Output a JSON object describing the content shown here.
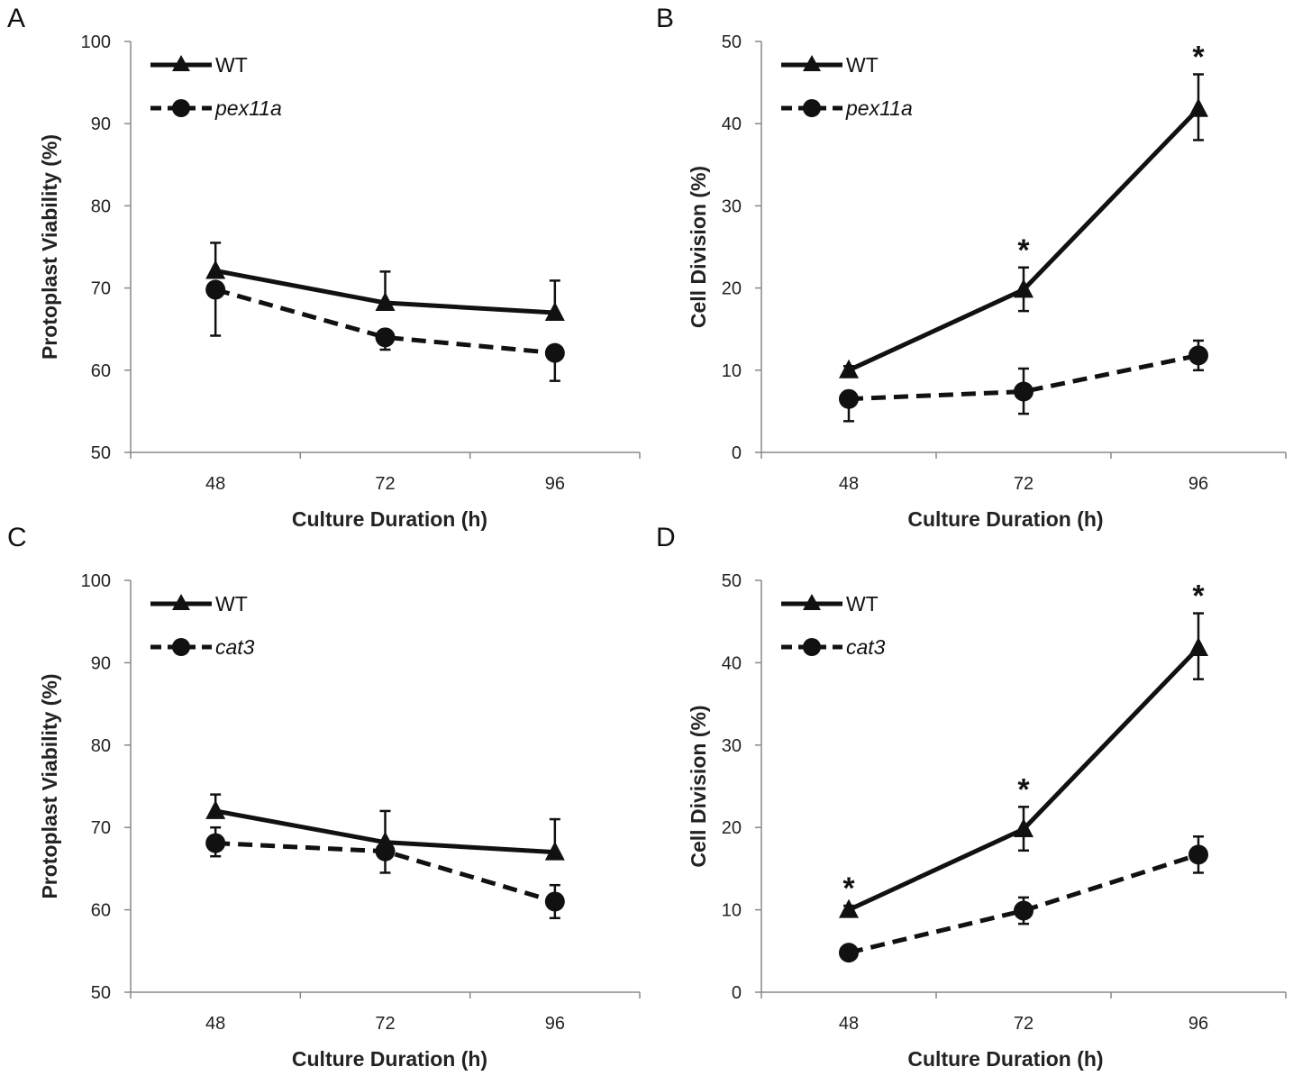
{
  "chart_data": [
    {
      "panel": "A",
      "type": "line",
      "xlabel": "Culture Duration (h)",
      "ylabel": "Protoplast Viability (%)",
      "ylim": [
        50,
        100
      ],
      "yticks": [
        50,
        60,
        70,
        80,
        90,
        100
      ],
      "categories": [
        "48",
        "72",
        "96"
      ],
      "series": [
        {
          "name": "WT",
          "italic": false,
          "style": "solid-triangle",
          "values": [
            72.1,
            68.2,
            67.0
          ],
          "err_up": [
            3.4,
            3.8,
            3.9
          ],
          "err_down": [
            0,
            0,
            0
          ]
        },
        {
          "name": "pex11a",
          "italic": true,
          "style": "dashed-circle",
          "values": [
            69.8,
            64.0,
            62.1
          ],
          "err_up": [
            0,
            0,
            0
          ],
          "err_down": [
            5.6,
            1.5,
            3.4
          ]
        }
      ],
      "significance": []
    },
    {
      "panel": "B",
      "type": "line",
      "xlabel": "Culture Duration (h)",
      "ylabel": "Cell Division (%)",
      "ylim": [
        0,
        50
      ],
      "yticks": [
        0,
        10,
        20,
        30,
        40,
        50
      ],
      "categories": [
        "48",
        "72",
        "96"
      ],
      "series": [
        {
          "name": "WT",
          "italic": false,
          "style": "solid-triangle",
          "values": [
            10.0,
            19.8,
            41.8
          ],
          "err_up": [
            0.5,
            2.7,
            4.2
          ],
          "err_down": [
            0,
            2.6,
            3.8
          ]
        },
        {
          "name": "pex11a",
          "italic": true,
          "style": "dashed-circle",
          "values": [
            6.5,
            7.4,
            11.8
          ],
          "err_up": [
            0,
            2.8,
            1.8
          ],
          "err_down": [
            2.7,
            2.7,
            1.8
          ]
        }
      ],
      "significance": [
        "",
        "*",
        "*"
      ]
    },
    {
      "panel": "C",
      "type": "line",
      "xlabel": "Culture Duration (h)",
      "ylabel": "Protoplast Viability (%)",
      "ylim": [
        50,
        100
      ],
      "yticks": [
        50,
        60,
        70,
        80,
        90,
        100
      ],
      "categories": [
        "48",
        "72",
        "96"
      ],
      "series": [
        {
          "name": "WT",
          "italic": false,
          "style": "solid-triangle",
          "values": [
            72.0,
            68.2,
            67.0
          ],
          "err_up": [
            2.0,
            3.8,
            4.0
          ],
          "err_down": [
            0,
            0,
            0
          ]
        },
        {
          "name": "cat3",
          "italic": true,
          "style": "dashed-circle",
          "values": [
            68.1,
            67.1,
            61.0
          ],
          "err_up": [
            1.9,
            0,
            2.0
          ],
          "err_down": [
            1.6,
            2.6,
            2.0
          ]
        }
      ],
      "significance": []
    },
    {
      "panel": "D",
      "type": "line",
      "xlabel": "Culture Duration (h)",
      "ylabel": "Cell Division (%)",
      "ylim": [
        0,
        50
      ],
      "yticks": [
        0,
        10,
        20,
        30,
        40,
        50
      ],
      "categories": [
        "48",
        "72",
        "96"
      ],
      "series": [
        {
          "name": "WT",
          "italic": false,
          "style": "solid-triangle",
          "values": [
            10.0,
            19.8,
            41.8
          ],
          "err_up": [
            0.5,
            2.7,
            4.2
          ],
          "err_down": [
            0,
            2.6,
            3.8
          ]
        },
        {
          "name": "cat3",
          "italic": true,
          "style": "dashed-circle",
          "values": [
            4.8,
            9.9,
            16.7
          ],
          "err_up": [
            0,
            1.6,
            2.2
          ],
          "err_down": [
            0,
            1.6,
            2.2
          ]
        }
      ],
      "significance": [
        "*",
        "*",
        "*"
      ]
    }
  ]
}
